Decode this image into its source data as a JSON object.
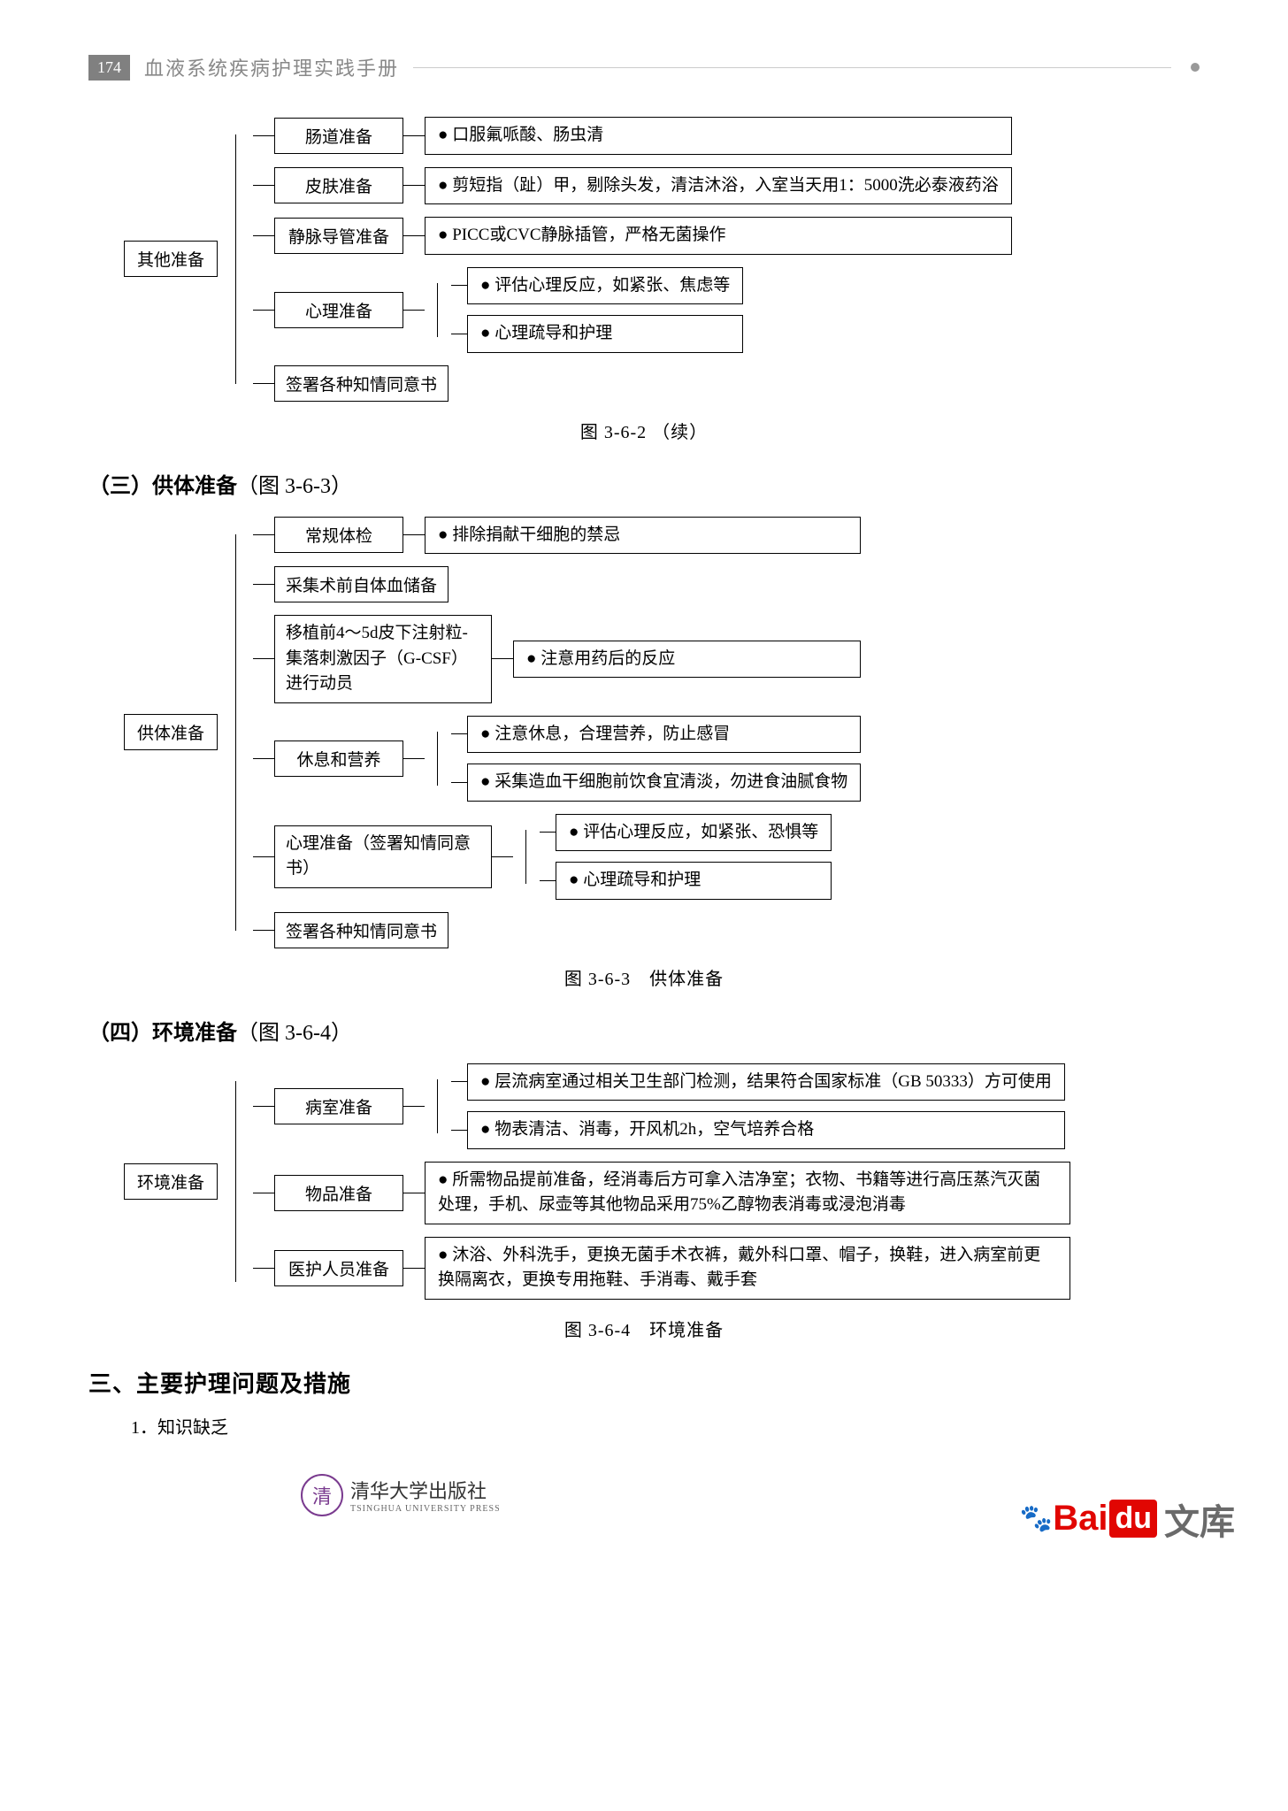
{
  "page_number": "174",
  "book_title": "血液系统疾病护理实践手册",
  "colors": {
    "page_num_bg": "#808080",
    "border": "#000000",
    "text": "#000000",
    "muted": "#888888",
    "baidu_red": "#e10602",
    "baidu_blue": "#2932e1",
    "paw_blue": "#2a6be0",
    "pub_purple": "#7a3b8f"
  },
  "fig1": {
    "root": "其他准备",
    "branches": [
      {
        "label": "肠道准备",
        "leaves": [
          "口服氟哌酸、肠虫清"
        ]
      },
      {
        "label": "皮肤准备",
        "leaves": [
          "剪短指（趾）甲，剔除头发，清洁沐浴，入室当天用1：5000洗必泰液药浴"
        ]
      },
      {
        "label": "静脉导管准备",
        "leaves": [
          "PICC或CVC静脉插管，严格无菌操作"
        ]
      },
      {
        "label": "心理准备",
        "leaves": [
          "评估心理反应，如紧张、焦虑等",
          "心理疏导和护理"
        ]
      },
      {
        "label": "签署各种知情同意书",
        "leaves": []
      }
    ],
    "caption": "图 3-6-2 （续）"
  },
  "section3": {
    "heading_bold": "（三）供体准备",
    "heading_rest": "（图 3-6-3）"
  },
  "fig2": {
    "root": "供体准备",
    "branches": [
      {
        "label": "常规体检",
        "leaves": [
          "排除捐献干细胞的禁忌"
        ]
      },
      {
        "label": "采集术前自体血储备",
        "leaves": []
      },
      {
        "label": "移植前4～5d皮下注射粒-集落刺激因子（G-CSF）进行动员",
        "leaves": [
          "注意用药后的反应"
        ],
        "wide": true
      },
      {
        "label": "休息和营养",
        "leaves": [
          "注意休息，合理营养，防止感冒",
          "采集造血干细胞前饮食宜清淡，勿进食油腻食物"
        ]
      },
      {
        "label": "心理准备（签署知情同意书）",
        "leaves": [
          "评估心理反应，如紧张、恐惧等",
          "心理疏导和护理"
        ],
        "wide": true
      },
      {
        "label": "签署各种知情同意书",
        "leaves": []
      }
    ],
    "caption": "图 3-6-3　供体准备"
  },
  "section4": {
    "heading_bold": "（四）环境准备",
    "heading_rest": "（图 3-6-4）"
  },
  "fig3": {
    "root": "环境准备",
    "branches": [
      {
        "label": "病室准备",
        "leaves": [
          "层流病室通过相关卫生部门检测，结果符合国家标准（GB 50333）方可使用",
          "物表清洁、消毒，开风机2h，空气培养合格"
        ]
      },
      {
        "label": "物品准备",
        "leaves": [
          "所需物品提前准备，经消毒后方可拿入洁净室；衣物、书籍等进行高压蒸汽灭菌处理，手机、尿壶等其他物品采用75%乙醇物表消毒或浸泡消毒"
        ]
      },
      {
        "label": "医护人员准备",
        "leaves": [
          "沐浴、外科洗手，更换无菌手术衣裤，戴外科口罩、帽子，换鞋，进入病室前更换隔离衣，更换专用拖鞋、手消毒、戴手套"
        ]
      }
    ],
    "caption": "图 3-6-4　环境准备"
  },
  "h3": "三、主要护理问题及措施",
  "body1_prefix": "1．",
  "body1_text": "知识缺乏",
  "publisher": {
    "seal": "清",
    "cn": "清华大学出版社",
    "en": "TSINGHUA UNIVERSITY PRESS"
  },
  "baidu": {
    "bai": "Bai",
    "du": "du",
    "wenku": "文库"
  }
}
